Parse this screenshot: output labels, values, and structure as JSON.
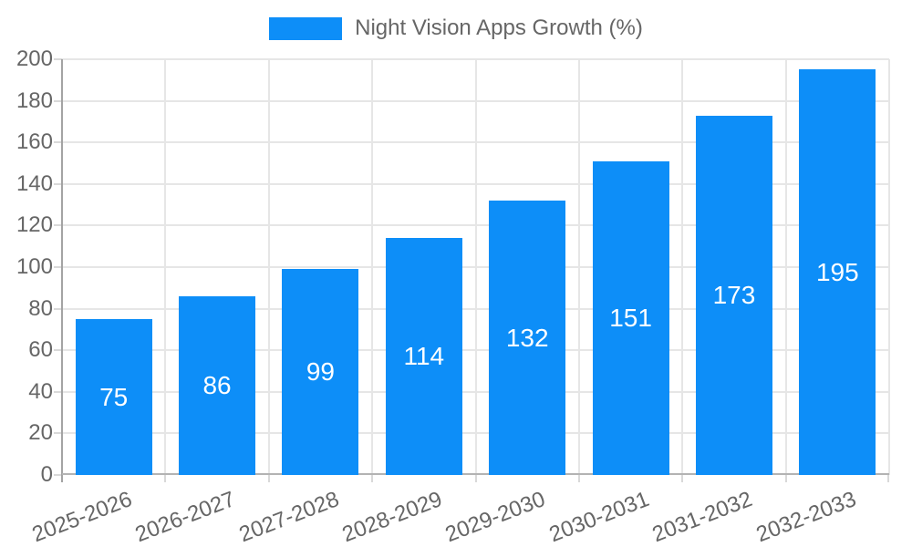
{
  "legend": {
    "label": "Night Vision Apps Growth (%)"
  },
  "chart_data": {
    "type": "bar",
    "title": "",
    "xlabel": "",
    "ylabel": "",
    "categories": [
      "2025-2026",
      "2026-2027",
      "2027-2028",
      "2028-2029",
      "2029-2030",
      "2030-2031",
      "2031-2032",
      "2032-2033"
    ],
    "values": [
      75,
      86,
      99,
      114,
      132,
      151,
      173,
      195
    ],
    "series": [
      {
        "name": "Night Vision Apps Growth (%)",
        "values": [
          75,
          86,
          99,
          114,
          132,
          151,
          173,
          195
        ]
      }
    ],
    "ylim": [
      0,
      200
    ],
    "ytick_step": 20,
    "yticks": [
      0,
      20,
      40,
      60,
      80,
      100,
      120,
      140,
      160,
      180,
      200
    ],
    "grid": true,
    "legend_position": "top-center",
    "bar_value_labels_visible": true
  },
  "colors": {
    "bar_fill": "#0d8ef8",
    "gridline": "#e6e6e6",
    "tick": "#d9d9d9",
    "y_axis_line": "#a3a3a3",
    "x_axis_line": "#b3b3b3",
    "tick_label": "#666666",
    "legend_label": "#666666",
    "bar_value_label": "#ffffff",
    "background": "#ffffff"
  }
}
